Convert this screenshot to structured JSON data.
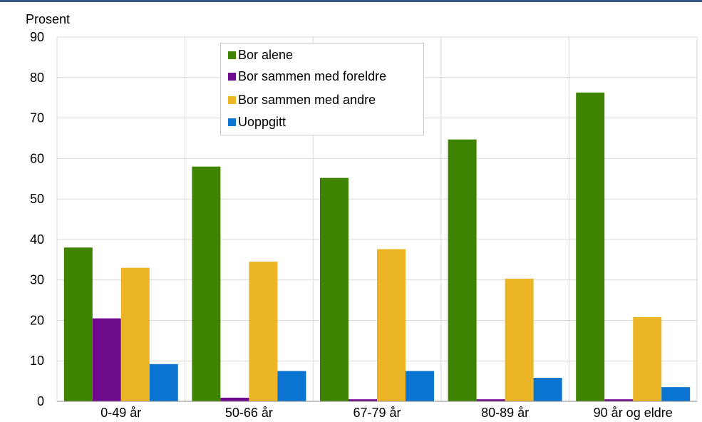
{
  "colors": {
    "top_rule": "#3a5a8a",
    "grid": "#d9d9d9",
    "axis": "#868686"
  },
  "chart_data": {
    "type": "bar",
    "ylabel": "Prosent",
    "ylim": [
      0,
      90
    ],
    "yticks": [
      0,
      10,
      20,
      30,
      40,
      50,
      60,
      70,
      80,
      90
    ],
    "grid": true,
    "legend_position": "top-center",
    "categories": [
      "0-49 år",
      "50-66 år",
      "67-79 år",
      "80-89 år",
      "90 år og eldre"
    ],
    "series": [
      {
        "name": "Bor alene",
        "color": "#3f8400",
        "values": [
          38.0,
          58.0,
          55.2,
          64.7,
          76.3
        ]
      },
      {
        "name": "Bor sammen med foreldre",
        "color": "#6e0a8c",
        "values": [
          20.5,
          0.9,
          0.5,
          0.5,
          0.5
        ]
      },
      {
        "name": "Bor sammen med andre",
        "color": "#ebb525",
        "values": [
          33.0,
          34.5,
          37.6,
          30.3,
          20.8
        ]
      },
      {
        "name": "Uoppgitt",
        "color": "#0b74d1",
        "values": [
          9.2,
          7.5,
          7.5,
          5.8,
          3.5
        ]
      }
    ]
  }
}
